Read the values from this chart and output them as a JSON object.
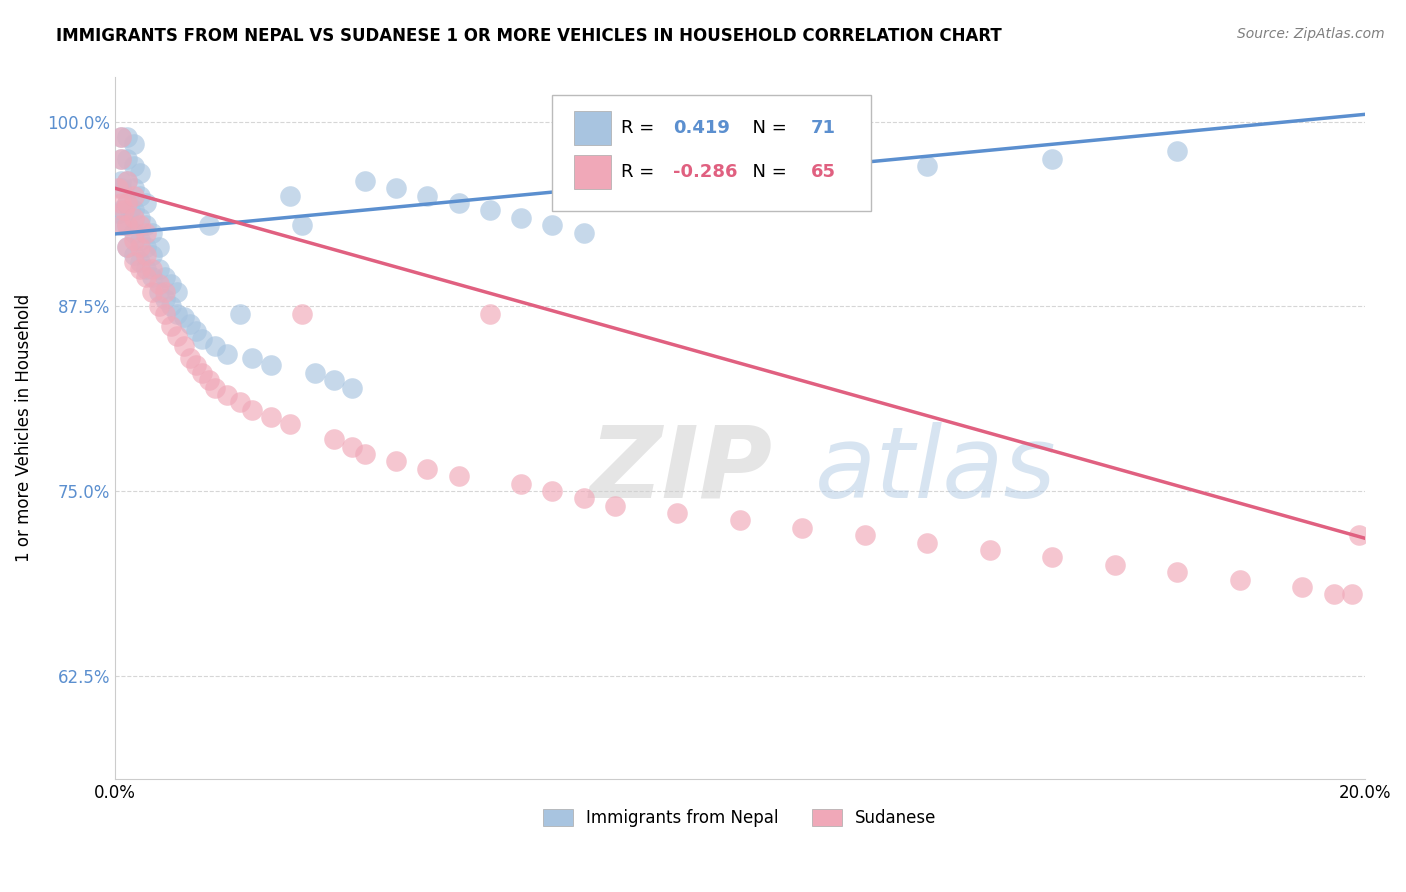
{
  "title": "IMMIGRANTS FROM NEPAL VS SUDANESE 1 OR MORE VEHICLES IN HOUSEHOLD CORRELATION CHART",
  "source": "Source: ZipAtlas.com",
  "ylabel": "1 or more Vehicles in Household",
  "xlim": [
    0.0,
    0.2
  ],
  "ylim": [
    0.555,
    1.03
  ],
  "yticks": [
    0.625,
    0.75,
    0.875,
    1.0
  ],
  "ytick_labels": [
    "62.5%",
    "75.0%",
    "87.5%",
    "100.0%"
  ],
  "xticks": [
    0.0,
    0.04,
    0.08,
    0.12,
    0.16,
    0.2
  ],
  "xtick_labels": [
    "0.0%",
    "",
    "",
    "",
    "",
    "20.0%"
  ],
  "nepal_color": "#a8c4e0",
  "sudanese_color": "#f0a8b8",
  "nepal_line_color": "#5b8fcf",
  "sudanese_line_color": "#e06080",
  "nepal_R": 0.419,
  "nepal_N": 71,
  "sudanese_R": -0.286,
  "sudanese_N": 65,
  "watermark_zip": "ZIP",
  "watermark_atlas": "atlas",
  "nepal_line_x0": 0.0,
  "nepal_line_y0": 0.924,
  "nepal_line_x1": 0.2,
  "nepal_line_y1": 1.005,
  "sudanese_line_x0": 0.0,
  "sudanese_line_y0": 0.955,
  "sudanese_line_x1": 0.2,
  "sudanese_line_y1": 0.718,
  "nepal_scatter_x": [
    0.0005,
    0.001,
    0.001,
    0.001,
    0.001,
    0.001,
    0.0015,
    0.002,
    0.002,
    0.002,
    0.002,
    0.002,
    0.002,
    0.0025,
    0.003,
    0.003,
    0.003,
    0.003,
    0.003,
    0.003,
    0.004,
    0.004,
    0.004,
    0.004,
    0.004,
    0.005,
    0.005,
    0.005,
    0.005,
    0.006,
    0.006,
    0.006,
    0.007,
    0.007,
    0.007,
    0.008,
    0.008,
    0.009,
    0.009,
    0.01,
    0.01,
    0.011,
    0.012,
    0.013,
    0.014,
    0.015,
    0.016,
    0.018,
    0.02,
    0.022,
    0.025,
    0.028,
    0.03,
    0.032,
    0.035,
    0.038,
    0.04,
    0.045,
    0.05,
    0.055,
    0.06,
    0.065,
    0.07,
    0.075,
    0.08,
    0.09,
    0.1,
    0.11,
    0.13,
    0.15,
    0.17
  ],
  "nepal_scatter_y": [
    0.938,
    0.96,
    0.975,
    0.99,
    0.94,
    0.955,
    0.93,
    0.915,
    0.945,
    0.96,
    0.975,
    0.99,
    0.93,
    0.94,
    0.91,
    0.925,
    0.94,
    0.955,
    0.97,
    0.985,
    0.905,
    0.92,
    0.935,
    0.95,
    0.965,
    0.9,
    0.915,
    0.93,
    0.945,
    0.895,
    0.91,
    0.925,
    0.885,
    0.9,
    0.915,
    0.88,
    0.895,
    0.875,
    0.89,
    0.87,
    0.885,
    0.868,
    0.863,
    0.858,
    0.853,
    0.93,
    0.848,
    0.843,
    0.87,
    0.84,
    0.835,
    0.95,
    0.93,
    0.83,
    0.825,
    0.82,
    0.96,
    0.955,
    0.95,
    0.945,
    0.94,
    0.935,
    0.93,
    0.925,
    0.96,
    0.955,
    0.96,
    0.965,
    0.97,
    0.975,
    0.98
  ],
  "sudanese_scatter_x": [
    0.0005,
    0.001,
    0.001,
    0.001,
    0.001,
    0.0015,
    0.002,
    0.002,
    0.002,
    0.002,
    0.003,
    0.003,
    0.003,
    0.003,
    0.004,
    0.004,
    0.004,
    0.005,
    0.005,
    0.005,
    0.006,
    0.006,
    0.007,
    0.007,
    0.008,
    0.008,
    0.009,
    0.01,
    0.011,
    0.012,
    0.013,
    0.014,
    0.015,
    0.016,
    0.018,
    0.02,
    0.022,
    0.025,
    0.028,
    0.03,
    0.035,
    0.038,
    0.04,
    0.045,
    0.05,
    0.055,
    0.06,
    0.065,
    0.07,
    0.075,
    0.08,
    0.09,
    0.1,
    0.11,
    0.12,
    0.13,
    0.14,
    0.15,
    0.16,
    0.17,
    0.18,
    0.19,
    0.195,
    0.198,
    0.199
  ],
  "sudanese_scatter_y": [
    0.955,
    0.975,
    0.99,
    0.945,
    0.93,
    0.94,
    0.915,
    0.93,
    0.945,
    0.96,
    0.905,
    0.92,
    0.935,
    0.95,
    0.9,
    0.915,
    0.93,
    0.895,
    0.91,
    0.925,
    0.885,
    0.9,
    0.875,
    0.89,
    0.87,
    0.885,
    0.862,
    0.855,
    0.848,
    0.84,
    0.835,
    0.83,
    0.825,
    0.82,
    0.815,
    0.81,
    0.805,
    0.8,
    0.795,
    0.87,
    0.785,
    0.78,
    0.775,
    0.77,
    0.765,
    0.76,
    0.87,
    0.755,
    0.75,
    0.745,
    0.74,
    0.735,
    0.73,
    0.725,
    0.72,
    0.715,
    0.71,
    0.705,
    0.7,
    0.695,
    0.69,
    0.685,
    0.68,
    0.68,
    0.72
  ]
}
